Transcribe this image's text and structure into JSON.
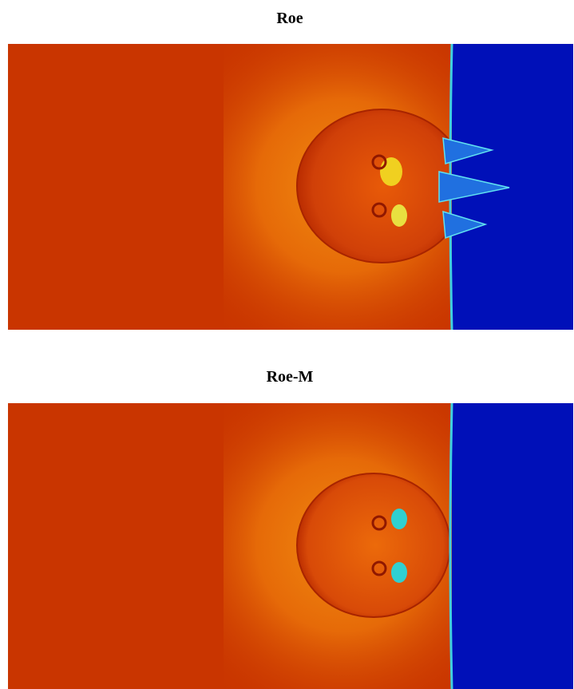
{
  "panels": [
    {
      "title": "Roe"
    },
    {
      "title": "Roe-M"
    }
  ]
}
